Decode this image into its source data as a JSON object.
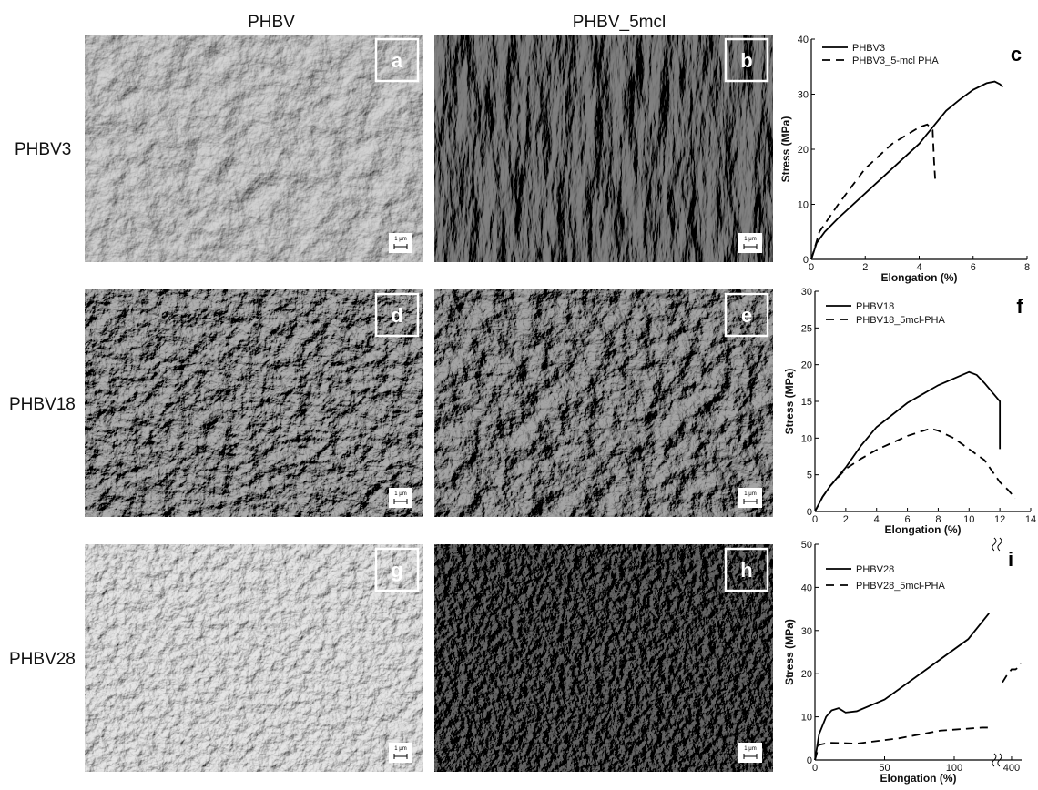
{
  "column_headers": [
    "PHBV",
    "PHBV_5mcl"
  ],
  "row_labels": [
    "PHBV3",
    "PHBV18",
    "PHBV28"
  ],
  "panels": [
    {
      "letter": "a",
      "scale_label": "1 μm"
    },
    {
      "letter": "b",
      "scale_label": "1 μm"
    },
    {
      "letter": "d",
      "scale_label": "1 μm"
    },
    {
      "letter": "e",
      "scale_label": "1 μm"
    },
    {
      "letter": "g",
      "scale_label": "1 μm"
    },
    {
      "letter": "h",
      "scale_label": "1 μm"
    }
  ],
  "chart_data": [
    {
      "type": "line",
      "label": "c",
      "x_label": "Elongation (%)",
      "y_label": "Stress (MPa)",
      "xlim": [
        0,
        8
      ],
      "xticks": [
        0,
        2,
        4,
        6,
        8
      ],
      "ylim": [
        0,
        40
      ],
      "yticks": [
        0,
        10,
        20,
        30,
        40
      ],
      "series": [
        {
          "name": "PHBV3",
          "color": "#000000",
          "line_style": "solid",
          "x": [
            0,
            0.2,
            0.5,
            1,
            2,
            3,
            4,
            4.5,
            5,
            5.5,
            6,
            6.5,
            6.8,
            7,
            7.1
          ],
          "values": [
            0,
            3,
            5,
            7.5,
            12,
            16.5,
            21,
            24,
            27,
            29,
            30.8,
            32,
            32.3,
            31.8,
            31.3
          ]
        },
        {
          "name": "PHBV3_5-mcl PHA",
          "color": "#000000",
          "line_style": "dashed",
          "x": [
            0,
            0.3,
            1,
            2,
            3,
            4,
            4.3,
            4.5,
            4.55,
            4.6
          ],
          "values": [
            0,
            5,
            10,
            16.5,
            21,
            24,
            24.5,
            23.5,
            18,
            14
          ]
        }
      ]
    },
    {
      "type": "line",
      "label": "f",
      "x_label": "Elongation (%)",
      "y_label": "Stress (MPa)",
      "xlim": [
        0,
        14
      ],
      "xticks": [
        0,
        2,
        4,
        6,
        8,
        10,
        12,
        14
      ],
      "ylim": [
        0,
        30
      ],
      "yticks": [
        0,
        5,
        10,
        15,
        20,
        25,
        30
      ],
      "series": [
        {
          "name": "PHBV18",
          "color": "#000000",
          "line_style": "solid",
          "x": [
            0,
            0.5,
            1,
            2,
            3,
            4,
            6,
            8,
            10,
            10.5,
            11,
            11.8,
            12,
            12
          ],
          "values": [
            0,
            2,
            3.5,
            6,
            9,
            11.5,
            14.8,
            17.2,
            19,
            18.6,
            17.5,
            15.5,
            15,
            8.5
          ]
        },
        {
          "name": "PHBV18_5mcl-PHA",
          "color": "#000000",
          "line_style": "dashed",
          "x": [
            0,
            0.5,
            1,
            2,
            3,
            4,
            6,
            7.5,
            8,
            9,
            10,
            11,
            12,
            12.5,
            13
          ],
          "values": [
            0,
            2,
            3.5,
            5.8,
            7.2,
            8.4,
            10.3,
            11.3,
            11,
            10,
            8.5,
            7,
            4,
            3,
            1.8
          ]
        }
      ]
    },
    {
      "type": "line",
      "label": "i",
      "x_label": "Elongation (%)",
      "y_label": "Stress (MPa)",
      "xlim": [
        0,
        420
      ],
      "xbreak": [
        130,
        380
      ],
      "xticks": [
        0,
        50,
        100,
        400
      ],
      "ylim": [
        0,
        50
      ],
      "yticks": [
        0,
        10,
        20,
        30,
        40,
        50
      ],
      "series": [
        {
          "name": "PHBV28",
          "color": "#000000",
          "line_style": "solid",
          "x": [
            0,
            3,
            8,
            12,
            17,
            22,
            30,
            50,
            80,
            110,
            125
          ],
          "values": [
            0,
            6,
            10,
            11.5,
            12,
            11,
            11.3,
            14,
            21,
            28,
            34
          ]
        },
        {
          "name": "PHBV28_5mcl-PHA",
          "color": "#000000",
          "line_style": "dashed",
          "x": [
            0,
            3,
            10,
            30,
            60,
            90,
            120,
            125,
            126,
            382,
            390,
            400,
            408,
            414,
            418
          ],
          "values": [
            0,
            3.5,
            4,
            3.8,
            5,
            6.8,
            7.5,
            7.5,
            null,
            18,
            19.5,
            21,
            21,
            21.5,
            22.3
          ]
        }
      ]
    }
  ]
}
